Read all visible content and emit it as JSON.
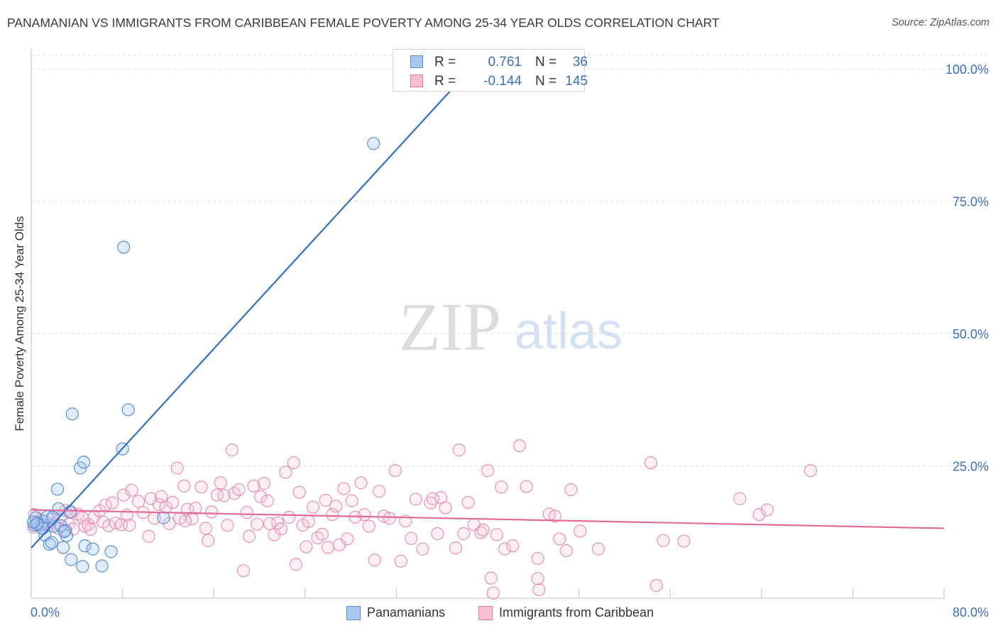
{
  "title": "PANAMANIAN VS IMMIGRANTS FROM CARIBBEAN FEMALE POVERTY AMONG 25-34 YEAR OLDS CORRELATION CHART",
  "source": "Source: ZipAtlas.com",
  "watermark": {
    "zip": "ZIP",
    "atlas": "atlas"
  },
  "legend": {
    "r_label": "R =",
    "n_label": "N =",
    "series": [
      {
        "name": "Panamanians",
        "r": "0.761",
        "n": "36",
        "fill": "#a9c8f0",
        "stroke": "#5a8fd6"
      },
      {
        "name": "Immigrants from Caribbean",
        "r": "-0.144",
        "n": "145",
        "fill": "#f7bfd2",
        "stroke": "#e07aa0"
      }
    ]
  },
  "chart_data": {
    "type": "scatter",
    "title": "PANAMANIAN VS IMMIGRANTS FROM CARIBBEAN FEMALE POVERTY AMONG 25-34 YEAR OLDS CORRELATION CHART",
    "xlabel": "",
    "ylabel": "Female Poverty Among 25-34 Year Olds",
    "xlim": [
      0,
      80
    ],
    "ylim": [
      0,
      100
    ],
    "x_ticks": [
      0,
      8,
      16,
      24,
      32,
      40,
      48,
      56,
      64,
      72,
      80
    ],
    "x_tick_labels": [
      "0.0%",
      "80.0%"
    ],
    "y_ticks": [
      25,
      50,
      75,
      100
    ],
    "y_tick_labels": [
      "25.0%",
      "50.0%",
      "75.0%",
      "100.0%"
    ],
    "grid": true,
    "series": [
      {
        "name": "Panamanians",
        "color": "#5a8fd6",
        "trend": {
          "x": [
            0,
            38.5
          ],
          "y": [
            9.5,
            100
          ]
        },
        "points": [
          [
            0.3,
            13.8
          ],
          [
            0.4,
            15.2
          ],
          [
            0.6,
            14.3
          ],
          [
            0.9,
            13.9
          ],
          [
            1.1,
            14.6
          ],
          [
            1.2,
            11.9
          ],
          [
            1.4,
            15.4
          ],
          [
            1.6,
            10.2
          ],
          [
            1.8,
            10.5
          ],
          [
            2.0,
            13.6
          ],
          [
            2.3,
            20.6
          ],
          [
            2.4,
            16.9
          ],
          [
            2.6,
            13.7
          ],
          [
            2.8,
            9.6
          ],
          [
            3.0,
            12.8
          ],
          [
            3.1,
            11.8
          ],
          [
            3.4,
            16.3
          ],
          [
            3.5,
            7.3
          ],
          [
            3.6,
            34.8
          ],
          [
            4.3,
            24.6
          ],
          [
            4.6,
            25.7
          ],
          [
            4.5,
            6.0
          ],
          [
            4.7,
            9.9
          ],
          [
            5.4,
            9.3
          ],
          [
            6.2,
            6.1
          ],
          [
            7.0,
            8.8
          ],
          [
            8.0,
            28.2
          ],
          [
            8.1,
            66.3
          ],
          [
            8.5,
            35.6
          ],
          [
            11.6,
            15.2
          ],
          [
            30.0,
            85.9
          ],
          [
            1.0,
            13.2
          ],
          [
            0.5,
            14.0
          ],
          [
            1.9,
            15.3
          ],
          [
            2.9,
            12.6
          ],
          [
            0.2,
            14.4
          ]
        ]
      },
      {
        "name": "Immigrants from Caribbean",
        "color": "#e07aa0",
        "trend": {
          "x": [
            0,
            80
          ],
          "y": [
            16.7,
            13.2
          ]
        },
        "points": [
          [
            0.2,
            13.4
          ],
          [
            0.3,
            15.8
          ],
          [
            0.4,
            14.2
          ],
          [
            0.6,
            13.9
          ],
          [
            0.8,
            14.8
          ],
          [
            1.0,
            13.5
          ],
          [
            1.2,
            14.3
          ],
          [
            1.5,
            13.9
          ],
          [
            1.8,
            14.9
          ],
          [
            2.1,
            14.1
          ],
          [
            2.4,
            13.2
          ],
          [
            2.6,
            15.3
          ],
          [
            3.0,
            16.6
          ],
          [
            3.3,
            14.0
          ],
          [
            3.5,
            16.3
          ],
          [
            3.7,
            13.1
          ],
          [
            4.1,
            15.9
          ],
          [
            4.5,
            15.2
          ],
          [
            4.7,
            13.6
          ],
          [
            5.0,
            13.9
          ],
          [
            5.2,
            13.0
          ],
          [
            5.5,
            15.3
          ],
          [
            6.0,
            16.5
          ],
          [
            6.3,
            14.4
          ],
          [
            6.5,
            17.6
          ],
          [
            6.8,
            13.7
          ],
          [
            7.1,
            18.0
          ],
          [
            7.4,
            14.2
          ],
          [
            7.9,
            13.9
          ],
          [
            8.1,
            19.5
          ],
          [
            8.4,
            15.7
          ],
          [
            8.8,
            20.4
          ],
          [
            8.6,
            13.8
          ],
          [
            9.4,
            18.3
          ],
          [
            9.8,
            16.2
          ],
          [
            10.3,
            11.7
          ],
          [
            10.5,
            18.8
          ],
          [
            10.8,
            15.1
          ],
          [
            11.2,
            17.7
          ],
          [
            11.4,
            19.2
          ],
          [
            11.8,
            17.2
          ],
          [
            12.1,
            14.1
          ],
          [
            12.4,
            18.1
          ],
          [
            12.8,
            24.6
          ],
          [
            13.0,
            15.1
          ],
          [
            13.4,
            21.2
          ],
          [
            13.7,
            16.8
          ],
          [
            14.1,
            15.0
          ],
          [
            14.4,
            17.0
          ],
          [
            14.9,
            21.0
          ],
          [
            15.3,
            13.2
          ],
          [
            15.5,
            10.9
          ],
          [
            15.8,
            16.3
          ],
          [
            16.3,
            19.5
          ],
          [
            16.6,
            21.8
          ],
          [
            16.9,
            19.4
          ],
          [
            17.2,
            13.8
          ],
          [
            17.6,
            28.0
          ],
          [
            17.8,
            19.8
          ],
          [
            18.2,
            20.5
          ],
          [
            18.6,
            5.2
          ],
          [
            18.9,
            16.2
          ],
          [
            19.1,
            11.7
          ],
          [
            19.5,
            21.2
          ],
          [
            19.8,
            14.0
          ],
          [
            20.1,
            19.2
          ],
          [
            20.4,
            21.7
          ],
          [
            20.7,
            18.4
          ],
          [
            20.9,
            14.1
          ],
          [
            21.3,
            12.0
          ],
          [
            21.6,
            14.2
          ],
          [
            21.9,
            13.1
          ],
          [
            22.3,
            23.8
          ],
          [
            22.6,
            15.3
          ],
          [
            23.0,
            25.6
          ],
          [
            23.2,
            6.4
          ],
          [
            23.5,
            20.0
          ],
          [
            23.8,
            13.8
          ],
          [
            24.1,
            9.7
          ],
          [
            24.3,
            14.5
          ],
          [
            24.7,
            17.2
          ],
          [
            25.1,
            11.4
          ],
          [
            25.5,
            12.1
          ],
          [
            25.8,
            18.5
          ],
          [
            26.0,
            9.6
          ],
          [
            26.4,
            15.8
          ],
          [
            26.7,
            17.4
          ],
          [
            27.0,
            10.1
          ],
          [
            27.4,
            20.7
          ],
          [
            27.7,
            11.2
          ],
          [
            28.1,
            18.4
          ],
          [
            28.4,
            15.3
          ],
          [
            28.9,
            21.8
          ],
          [
            29.2,
            15.8
          ],
          [
            29.6,
            13.6
          ],
          [
            30.1,
            7.2
          ],
          [
            30.5,
            20.2
          ],
          [
            30.9,
            15.5
          ],
          [
            31.4,
            15.1
          ],
          [
            31.9,
            24.1
          ],
          [
            32.4,
            7.0
          ],
          [
            32.8,
            14.6
          ],
          [
            33.3,
            11.3
          ],
          [
            33.7,
            18.7
          ],
          [
            34.3,
            9.3
          ],
          [
            35.0,
            18.0
          ],
          [
            35.6,
            12.2
          ],
          [
            35.9,
            19.0
          ],
          [
            36.3,
            17.1
          ],
          [
            37.2,
            9.5
          ],
          [
            37.5,
            28.0
          ],
          [
            37.9,
            12.2
          ],
          [
            38.3,
            18.1
          ],
          [
            38.8,
            13.9
          ],
          [
            39.4,
            12.4
          ],
          [
            39.6,
            12.9
          ],
          [
            40.0,
            24.1
          ],
          [
            40.3,
            3.8
          ],
          [
            40.8,
            12.0
          ],
          [
            41.2,
            21.0
          ],
          [
            41.5,
            9.3
          ],
          [
            42.2,
            9.9
          ],
          [
            42.8,
            28.8
          ],
          [
            43.4,
            21.1
          ],
          [
            44.4,
            3.7
          ],
          [
            44.4,
            7.5
          ],
          [
            44.5,
            1.6
          ],
          [
            45.4,
            15.9
          ],
          [
            45.9,
            15.5
          ],
          [
            46.3,
            11.2
          ],
          [
            46.9,
            9.0
          ],
          [
            47.3,
            20.5
          ],
          [
            48.1,
            12.7
          ],
          [
            49.7,
            9.3
          ],
          [
            54.3,
            25.6
          ],
          [
            55.4,
            10.9
          ],
          [
            57.2,
            10.8
          ],
          [
            54.8,
            2.4
          ],
          [
            62.1,
            18.8
          ],
          [
            63.8,
            15.8
          ],
          [
            64.5,
            16.7
          ],
          [
            68.3,
            24.1
          ],
          [
            40.5,
            1.0
          ],
          [
            35.2,
            18.8
          ],
          [
            13.5,
            14.6
          ]
        ]
      }
    ]
  }
}
